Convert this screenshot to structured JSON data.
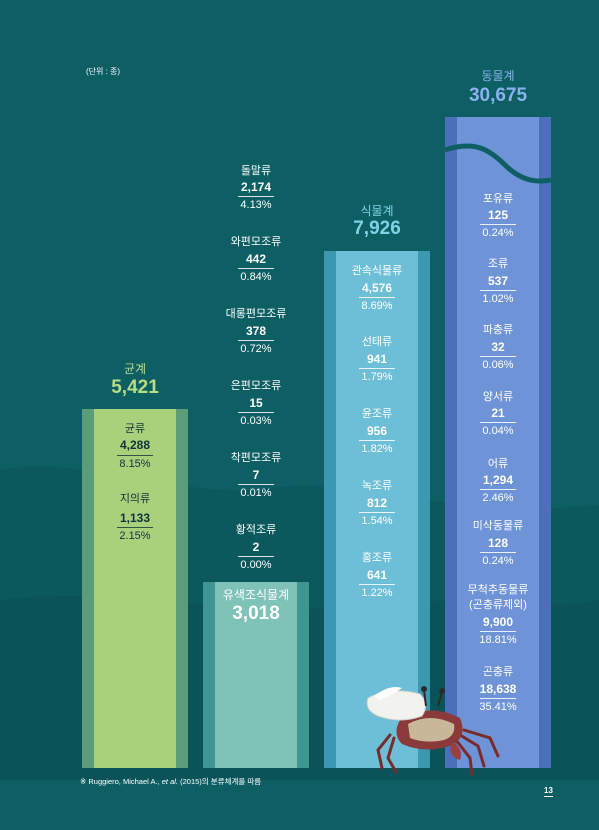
{
  "unit_note": "(단위 : 종)",
  "footnote": {
    "prefix": "※ Ruggiero, Michael A., ",
    "etal": "et al.",
    "suffix": " (2015)의 분류체계를 따름"
  },
  "page_number": "13",
  "colors": {
    "background": "#0d5f63",
    "fungi_bar": "#a9d07a",
    "fungi_edge": "#5a9d78",
    "algae_bar": "#7ec2b8",
    "algae_edge": "#3e9591",
    "plant_bar": "#6cbfd7",
    "plant_edge": "#3b98b0",
    "animal_bar": "#6e93d6",
    "animal_edge": "#4c6fbb",
    "fungi_title": "#b9dd84",
    "plant_title": "#7fd2e6",
    "animal_title": "#8cb1ee"
  },
  "chart_data": {
    "type": "bar",
    "ylabel": "(단위 : 종)",
    "categories": [
      "균계",
      "유색조식물계",
      "식물계",
      "동물계"
    ],
    "values": [
      5421,
      3018,
      7926,
      30675
    ],
    "groups": [
      {
        "name": "균계",
        "total": "5,421",
        "items": [
          {
            "label": "균류",
            "count": "4,288",
            "pct": "8.15%"
          },
          {
            "label": "지의류",
            "count": "1,133",
            "pct": "2.15%"
          }
        ]
      },
      {
        "name": "유색조식물계",
        "total": "3,018",
        "items": [
          {
            "label": "돌말류",
            "count": "2,174",
            "pct": "4.13%"
          },
          {
            "label": "와편모조류",
            "count": "442",
            "pct": "0.84%"
          },
          {
            "label": "대롱편모조류",
            "count": "378",
            "pct": "0.72%"
          },
          {
            "label": "은편모조류",
            "count": "15",
            "pct": "0.03%"
          },
          {
            "label": "착편모조류",
            "count": "7",
            "pct": "0.01%"
          },
          {
            "label": "황적조류",
            "count": "2",
            "pct": "0.00%"
          }
        ]
      },
      {
        "name": "식물계",
        "total": "7,926",
        "items": [
          {
            "label": "관속식물류",
            "count": "4,576",
            "pct": "8.69%"
          },
          {
            "label": "선태류",
            "count": "941",
            "pct": "1.79%"
          },
          {
            "label": "윤조류",
            "count": "956",
            "pct": "1.82%"
          },
          {
            "label": "녹조류",
            "count": "812",
            "pct": "1.54%"
          },
          {
            "label": "홍조류",
            "count": "641",
            "pct": "1.22%"
          }
        ]
      },
      {
        "name": "동물계",
        "total": "30,675",
        "items": [
          {
            "label": "포유류",
            "count": "125",
            "pct": "0.24%"
          },
          {
            "label": "조류",
            "count": "537",
            "pct": "1.02%"
          },
          {
            "label": "파충류",
            "count": "32",
            "pct": "0.06%"
          },
          {
            "label": "양서류",
            "count": "21",
            "pct": "0.04%"
          },
          {
            "label": "어류",
            "count": "1,294",
            "pct": "2.46%"
          },
          {
            "label": "미삭동물류",
            "count": "128",
            "pct": "0.24%"
          },
          {
            "label": "무척추동물류",
            "label2": "(곤충류제외)",
            "count": "9,900",
            "pct": "18.81%"
          },
          {
            "label": "곤충류",
            "count": "18,638",
            "pct": "35.41%"
          }
        ]
      }
    ]
  }
}
